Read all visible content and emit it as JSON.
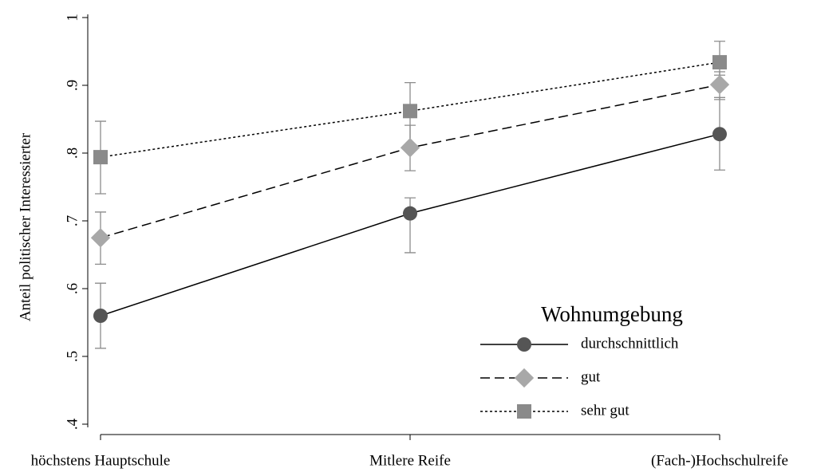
{
  "chart_data": {
    "type": "line",
    "ylabel": "Anteil politischer Interessierter",
    "categories": [
      "höchstens Hauptschule",
      "Mitlere Reife",
      "(Fach-)Hochschulreife"
    ],
    "ylim": [
      0.4,
      1
    ],
    "yticks": [
      {
        "value": 0.4,
        "label": ".4"
      },
      {
        "value": 0.5,
        "label": ".5"
      },
      {
        "value": 0.6,
        "label": ".6"
      },
      {
        "value": 0.7,
        "label": ".7"
      },
      {
        "value": 0.8,
        "label": ".8"
      },
      {
        "value": 0.9,
        "label": ".9"
      },
      1
    ],
    "legend_title": "Wohnumgebung",
    "legend_position": "lower right",
    "error_bar_color": "#8c8c8c",
    "series": [
      {
        "name": "durchschnittlich",
        "color": "#555555",
        "line_style": "solid",
        "marker": "circle",
        "values": [
          0.56,
          0.711,
          0.828
        ],
        "lower": [
          0.512,
          0.653,
          0.775
        ],
        "upper": [
          0.608,
          0.734,
          0.882
        ]
      },
      {
        "name": "gut",
        "color": "#a8a8a8",
        "line_style": "dashed",
        "marker": "diamond",
        "values": [
          0.675,
          0.808,
          0.901
        ],
        "lower": [
          0.636,
          0.774,
          0.879
        ],
        "upper": [
          0.713,
          0.841,
          0.92
        ]
      },
      {
        "name": "sehr gut",
        "color": "#8a8a8a",
        "line_style": "dotted",
        "marker": "square",
        "values": [
          0.794,
          0.862,
          0.934
        ],
        "lower": [
          0.74,
          0.813,
          0.915
        ],
        "upper": [
          0.847,
          0.904,
          0.965
        ]
      }
    ]
  }
}
